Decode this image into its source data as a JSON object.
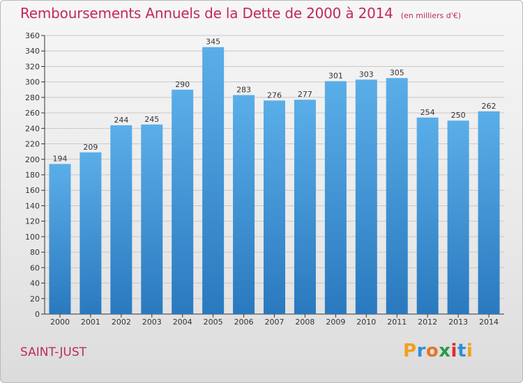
{
  "header": {
    "title": "Remboursements Annuels de la Dette de 2000 à 2014",
    "subtitle": "(en milliers d'€)"
  },
  "footer": {
    "commune": "SAINT-JUST",
    "logo_text": "Proxiti"
  },
  "colors": {
    "title": "#c0295d",
    "bar_light": "#5aaee8",
    "bar_dark": "#2a79bf",
    "grid": "#c8c8c8",
    "axis": "#333333"
  },
  "chart_data": {
    "type": "bar",
    "title": "Remboursements Annuels de la Dette de 2000 à 2014",
    "subtitle": "(en milliers d'€)",
    "categories": [
      "2000",
      "2001",
      "2002",
      "2003",
      "2004",
      "2005",
      "2006",
      "2007",
      "2008",
      "2009",
      "2010",
      "2011",
      "2012",
      "2013",
      "2014"
    ],
    "values": [
      194,
      209,
      244,
      245,
      290,
      345,
      283,
      276,
      277,
      301,
      303,
      305,
      254,
      250,
      262
    ],
    "ylim": [
      0,
      360
    ],
    "yticks": [
      0,
      20,
      40,
      60,
      80,
      100,
      120,
      140,
      160,
      180,
      200,
      220,
      240,
      260,
      280,
      300,
      320,
      340,
      360
    ],
    "grid": true,
    "xlabel": "",
    "ylabel": ""
  }
}
